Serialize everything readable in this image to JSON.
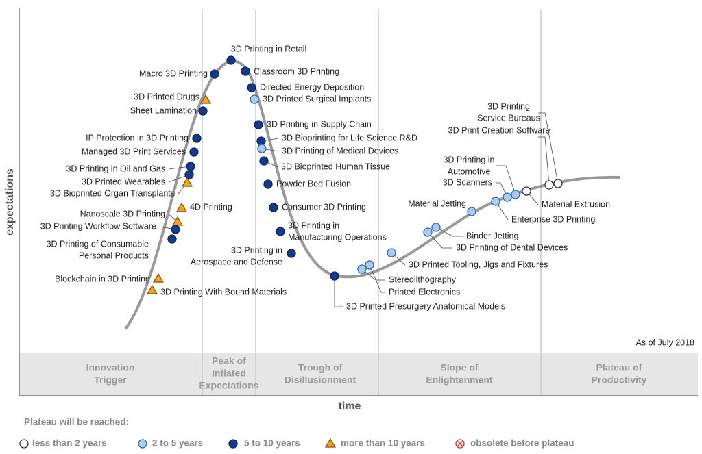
{
  "axis": {
    "y_label": "expectations",
    "x_label": "time"
  },
  "note": "As of July 2018",
  "phases": [
    [
      "Innovation",
      "Trigger"
    ],
    [
      "Peak of",
      "Inflated",
      "Expectations"
    ],
    [
      "Trough of",
      "Disillusionment"
    ],
    [
      "Slope of",
      "Enlightenment"
    ],
    [
      "Plateau of",
      "Productivity"
    ]
  ],
  "legend": {
    "title": "Plateau will be reached:",
    "items": [
      {
        "label": "less than 2 years",
        "shape": "circle",
        "color": "#ffffff",
        "stroke": "#333333"
      },
      {
        "label": "2 to 5 years",
        "shape": "circle",
        "color": "#a8cdef",
        "stroke": "#2f64a8"
      },
      {
        "label": "5 to 10 years",
        "shape": "circle",
        "color": "#143a8a",
        "stroke": "#0b2260"
      },
      {
        "label": "more than 10 years",
        "shape": "triangle",
        "color": "#f2a21e",
        "stroke": "#7a5200"
      },
      {
        "label": "obsolete before plateau",
        "shape": "cross",
        "color": "#ffffff",
        "stroke": "#e0281e"
      }
    ]
  },
  "nodes": [
    {
      "label": "3D Printing in Retail",
      "plateau": "5 to 10 years"
    },
    {
      "label": "Macro 3D Printing",
      "plateau": "5 to 10 years"
    },
    {
      "label": "Classroom 3D Printing",
      "plateau": "5 to 10 years"
    },
    {
      "label": "3D Printed Drugs",
      "plateau": "more than 10 years"
    },
    {
      "label": "Directed Energy Deposition",
      "plateau": "5 to 10 years"
    },
    {
      "label": "3D Printed Surgical Implants",
      "plateau": "2 to 5 years"
    },
    {
      "label": "Sheet Lamination",
      "plateau": "5 to 10 years"
    },
    {
      "label": "IP Protection in 3D Printing",
      "plateau": "5 to 10 years"
    },
    {
      "label": "3D Printing in Supply Chain",
      "plateau": "5 to 10 years"
    },
    {
      "label": "3D Bioprinting for Life Science R&D",
      "plateau": "5 to 10 years"
    },
    {
      "label": "3D Printing of Medical Devices",
      "plateau": "2 to 5 years"
    },
    {
      "label": "Managed 3D Print Services",
      "plateau": "5 to 10 years"
    },
    {
      "label": "3D Bioprinted Human Tissue",
      "plateau": "5 to 10 years"
    },
    {
      "label": "3D Printing in Oil and Gas",
      "plateau": "5 to 10 years"
    },
    {
      "label": "3D Printed Wearables",
      "plateau": "5 to 10 years"
    },
    {
      "label": "3D Bioprinted Organ Transplants",
      "plateau": "more than 10 years"
    },
    {
      "label": "Powder Bed Fusion",
      "plateau": "5 to 10 years"
    },
    {
      "label": "4D Printing",
      "plateau": "more than 10 years"
    },
    {
      "label": "Consumer 3D Printing",
      "plateau": "5 to 10 years"
    },
    {
      "label": "Nanoscale 3D Printing",
      "plateau": "more than 10 years"
    },
    {
      "label": "3D Printing Workflow Software",
      "plateau": "5 to 10 years"
    },
    {
      "label": [
        "3D Printing in",
        "Manufacturing Operations"
      ],
      "plateau": "5 to 10 years"
    },
    {
      "label": [
        "3D Printing of Consumable",
        "Personal Products"
      ],
      "plateau": "5 to 10 years"
    },
    {
      "label": [
        "3D Printing in",
        "Aerospace and Defense"
      ],
      "plateau": "5 to 10 years"
    },
    {
      "label": "Blockchain in 3D Printing",
      "plateau": "more than 10 years"
    },
    {
      "label": "3D Printing With Bound Materials",
      "plateau": "more than 10 years"
    },
    {
      "label": "3D Printed Presurgery Anatomical Models",
      "plateau": "5 to 10 years"
    },
    {
      "label": "Stereolithography",
      "plateau": "2 to 5 years"
    },
    {
      "label": "Printed Electronics",
      "plateau": "2 to 5 years"
    },
    {
      "label": "3D Printed Tooling, Jigs and Fixtures",
      "plateau": "2 to 5 years"
    },
    {
      "label": "3D Printing of Dental Devices",
      "plateau": "2 to 5 years"
    },
    {
      "label": "Binder Jetting",
      "plateau": "2 to 5 years"
    },
    {
      "label": "Material Jetting",
      "plateau": "2 to 5 years"
    },
    {
      "label": "Enterprise 3D Printing",
      "plateau": "2 to 5 years"
    },
    {
      "label": "3D Scanners",
      "plateau": "2 to 5 years"
    },
    {
      "label": [
        "3D Printing in",
        "Automotive"
      ],
      "plateau": "2 to 5 years"
    },
    {
      "label": "Material Extrusion",
      "plateau": "less than 2 years"
    },
    {
      "label": "3D Print Creation Software",
      "plateau": "less than 2 years"
    },
    {
      "label": [
        "3D Printing",
        "Service Bureaus"
      ],
      "plateau": "less than 2 years"
    }
  ]
}
